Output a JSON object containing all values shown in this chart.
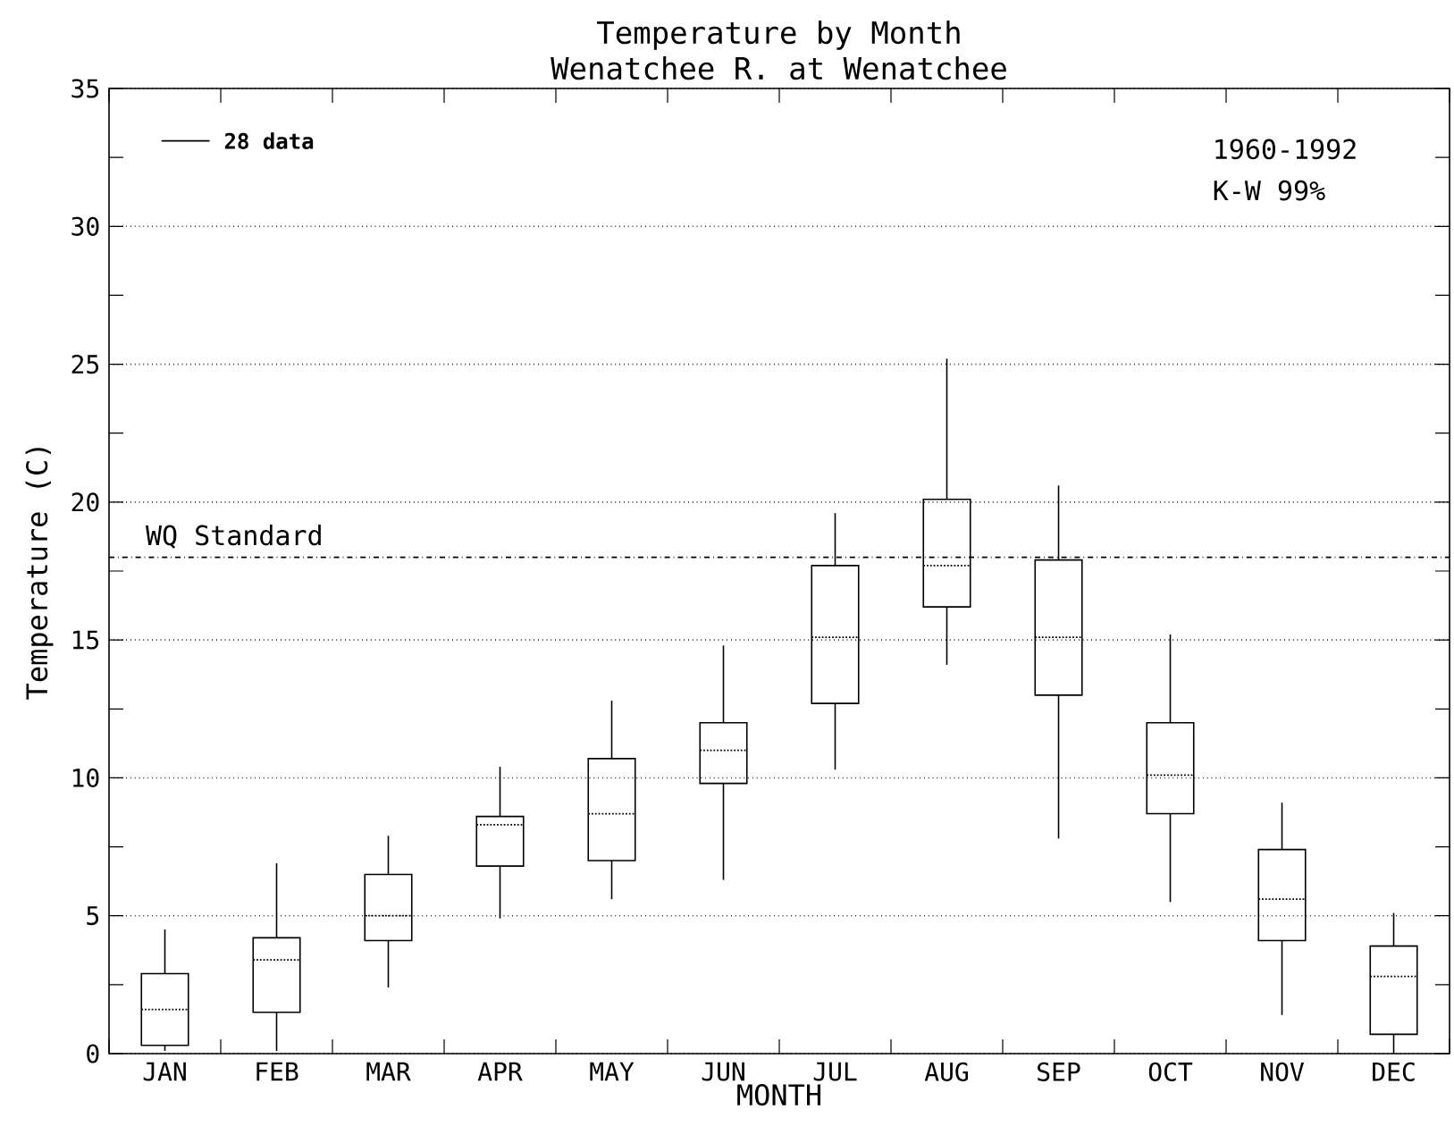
{
  "chart_data": {
    "type": "box",
    "title": "Temperature by Month",
    "subtitle": "Wenatchee R. at Wenatchee",
    "xlabel": "MONTH",
    "ylabel": "Temperature (C)",
    "categories": [
      "JAN",
      "FEB",
      "MAR",
      "APR",
      "MAY",
      "JUN",
      "JUL",
      "AUG",
      "SEP",
      "OCT",
      "NOV",
      "DEC"
    ],
    "color": "#000000",
    "boxes": [
      {
        "low": 0.1,
        "q1": 0.3,
        "median": 1.6,
        "q3": 2.9,
        "high": 4.5
      },
      {
        "low": 0.1,
        "q1": 1.5,
        "median": 3.4,
        "q3": 4.2,
        "high": 6.9
      },
      {
        "low": 2.4,
        "q1": 4.1,
        "median": 5.0,
        "q3": 6.5,
        "high": 7.9
      },
      {
        "low": 4.9,
        "q1": 6.8,
        "median": 8.3,
        "q3": 8.6,
        "high": 10.4
      },
      {
        "low": 5.6,
        "q1": 7.0,
        "median": 8.7,
        "q3": 10.7,
        "high": 12.8
      },
      {
        "low": 6.3,
        "q1": 9.8,
        "median": 11.0,
        "q3": 12.0,
        "high": 14.8
      },
      {
        "low": 10.3,
        "q1": 12.7,
        "median": 15.1,
        "q3": 17.7,
        "high": 19.6
      },
      {
        "low": 14.1,
        "q1": 16.2,
        "median": 17.7,
        "q3": 20.1,
        "high": 25.2
      },
      {
        "low": 7.8,
        "q1": 13.0,
        "median": 15.1,
        "q3": 17.9,
        "high": 20.6
      },
      {
        "low": 5.5,
        "q1": 8.7,
        "median": 10.1,
        "q3": 12.0,
        "high": 15.2
      },
      {
        "low": 1.4,
        "q1": 4.1,
        "median": 5.6,
        "q3": 7.4,
        "high": 9.1
      },
      {
        "low": 0.0,
        "q1": 0.7,
        "median": 2.8,
        "q3": 3.9,
        "high": 5.1
      }
    ],
    "ylim": [
      0,
      35
    ],
    "yticks": [
      0,
      5,
      10,
      15,
      20,
      25,
      30,
      35
    ],
    "grid": "y",
    "ref_lines": [
      {
        "axis": "y",
        "value": 18,
        "label": "WQ Standard",
        "line_style": "dashdot",
        "color": "#000000"
      }
    ],
    "annotations": [
      "28 data",
      "1960-1992",
      "K-W 99%"
    ]
  }
}
